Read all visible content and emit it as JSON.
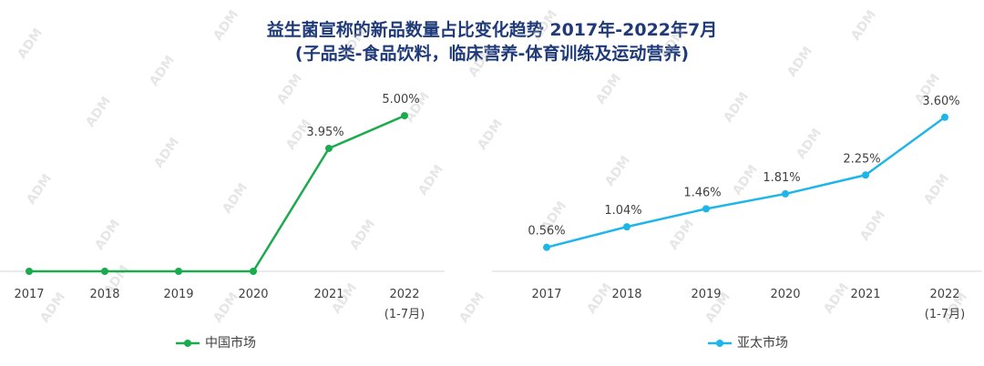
{
  "title": {
    "line1": "益生菌宣称的新品数量占比变化趋势 2017年-2022年7月",
    "line2": "(子品类-食品饮料，临床营养-体育训练及运动营养)"
  },
  "watermark": "ADM",
  "chart_data": [
    {
      "type": "line",
      "categories": [
        "2017",
        "2018",
        "2019",
        "2020",
        "2021",
        "2022"
      ],
      "category_sublabels": [
        "",
        "",
        "",
        "",
        "",
        "(1-7月)"
      ],
      "series": [
        {
          "name": "中国市场",
          "color": "#1aab4e",
          "values": [
            0,
            0,
            0,
            0,
            3.95,
            5.0
          ],
          "labels": [
            "",
            "",
            "",
            "",
            "3.95%",
            "5.00%"
          ]
        }
      ],
      "ylim": [
        0,
        5.5
      ],
      "grid": false,
      "legend": "bottom"
    },
    {
      "type": "line",
      "categories": [
        "2017",
        "2018",
        "2019",
        "2020",
        "2021",
        "2022"
      ],
      "category_sublabels": [
        "",
        "",
        "",
        "",
        "",
        "(1-7月)"
      ],
      "series": [
        {
          "name": "亚太市场",
          "color": "#1eb6e8",
          "values": [
            0.56,
            1.04,
            1.46,
            1.81,
            2.25,
            3.6
          ],
          "labels": [
            "0.56%",
            "1.04%",
            "1.46%",
            "1.81%",
            "2.25%",
            "3.60%"
          ]
        }
      ],
      "ylim": [
        0,
        4.0
      ],
      "grid": false,
      "legend": "bottom"
    }
  ]
}
